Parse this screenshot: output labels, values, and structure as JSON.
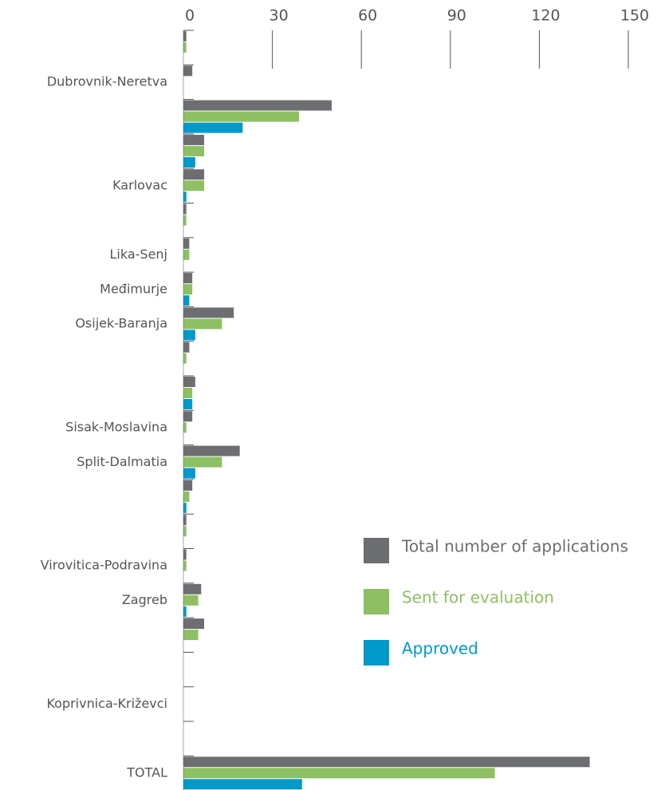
{
  "chart_data": {
    "type": "barh",
    "categories": [
      null,
      "Dubrovnik-Neretva",
      null,
      null,
      "Karlovac",
      null,
      "Lika-Senj",
      "Međimurje",
      "Osijek-Baranja",
      null,
      null,
      "Sisak-Moslavina",
      "Split-Dalmatia",
      null,
      null,
      "Virovitica-Podravina",
      "Zagreb",
      null,
      null,
      "Koprivnica-Križevci",
      null,
      "TOTAL"
    ],
    "series": [
      {
        "name": "Total number of applications",
        "color": "#6d6e71",
        "values": [
          1,
          3,
          50,
          7,
          7,
          1,
          2,
          3,
          17,
          2,
          4,
          3,
          19,
          3,
          1,
          1,
          6,
          7,
          null,
          null,
          null,
          137
        ]
      },
      {
        "name": "Sent for evaluation",
        "color": "#8dc063",
        "values": [
          1,
          null,
          39,
          7,
          7,
          1,
          2,
          3,
          13,
          1,
          3,
          1,
          13,
          2,
          1,
          1,
          5,
          5,
          null,
          null,
          null,
          105
        ]
      },
      {
        "name": "Approved",
        "color": "#0099cc",
        "values": [
          null,
          null,
          20,
          4,
          1,
          null,
          null,
          2,
          4,
          null,
          3,
          null,
          4,
          1,
          null,
          null,
          1,
          null,
          null,
          null,
          null,
          40
        ]
      }
    ],
    "xlim": [
      0,
      150
    ],
    "xticks": [
      0,
      30,
      60,
      90,
      120,
      150
    ],
    "grid": true,
    "legend": "right"
  }
}
